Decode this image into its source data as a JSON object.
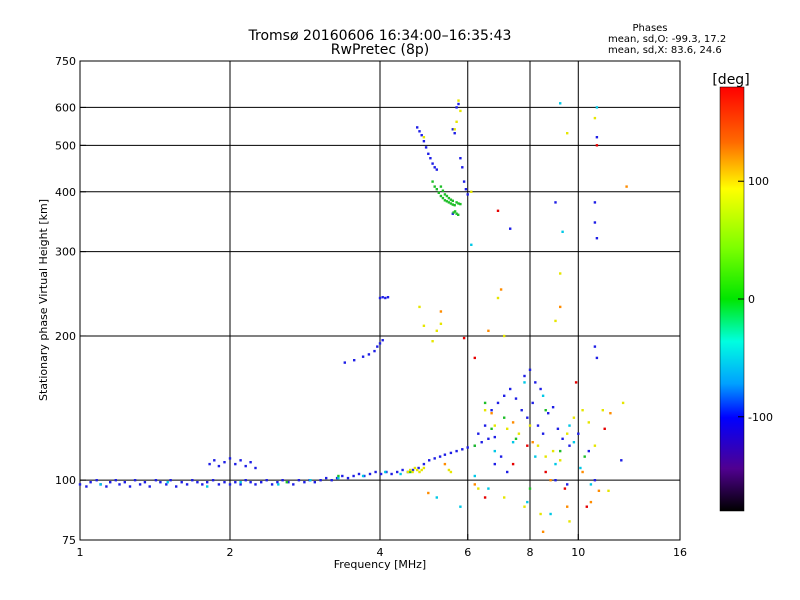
{
  "chart_data": {
    "type": "scatter",
    "title": "Tromsø 20160606 16:34:00–16:35:43",
    "subtitle": "RwPretec (8p)",
    "xlabel": "Frequency [MHz]",
    "ylabel": "Stationary phase Virtual Height [km]",
    "x_scale": "log",
    "y_scale": "log",
    "xlim": [
      1,
      16
    ],
    "ylim": [
      75,
      750
    ],
    "x_ticks": [
      1,
      2,
      4,
      6,
      8,
      10,
      16
    ],
    "y_ticks": [
      75,
      100,
      200,
      300,
      400,
      500,
      600,
      750
    ],
    "x_gridlines": [
      2,
      4,
      6,
      8,
      10
    ],
    "y_gridlines": [
      100,
      200,
      300,
      400,
      500,
      600
    ],
    "grid": true,
    "legend": {
      "title": "Phases",
      "line1": "mean, sd,O: -99.3, 17.2",
      "line2": "mean, sd,X: 83.6, 24.6",
      "placement": "top-right"
    },
    "colorbar": {
      "label": "[deg]",
      "ticks": [
        100,
        0,
        -100
      ],
      "range": [
        -180,
        180
      ],
      "placement": "right"
    },
    "series": [
      {
        "color": "#1e1ee6",
        "points": [
          [
            1.0,
            98
          ],
          [
            1.03,
            97
          ],
          [
            1.05,
            99
          ],
          [
            1.08,
            100
          ],
          [
            1.1,
            98
          ],
          [
            1.13,
            97
          ],
          [
            1.15,
            99
          ],
          [
            1.18,
            100
          ],
          [
            1.2,
            98
          ],
          [
            1.23,
            99
          ],
          [
            1.26,
            97
          ],
          [
            1.29,
            100
          ],
          [
            1.32,
            98
          ],
          [
            1.35,
            99
          ],
          [
            1.38,
            97
          ],
          [
            1.42,
            100
          ],
          [
            1.45,
            99
          ],
          [
            1.49,
            98
          ],
          [
            1.52,
            100
          ],
          [
            1.56,
            97
          ],
          [
            1.6,
            99
          ],
          [
            1.64,
            98
          ],
          [
            1.68,
            100
          ],
          [
            1.72,
            99
          ],
          [
            1.76,
            98
          ],
          [
            1.8,
            99
          ],
          [
            1.85,
            100
          ],
          [
            1.9,
            98
          ],
          [
            1.95,
            99
          ],
          [
            2.0,
            98
          ],
          [
            2.05,
            99
          ],
          [
            2.1,
            98
          ],
          [
            2.15,
            100
          ],
          [
            2.2,
            99
          ],
          [
            2.25,
            98
          ],
          [
            2.31,
            99
          ],
          [
            2.37,
            100
          ],
          [
            2.43,
            98
          ],
          [
            2.49,
            99
          ],
          [
            2.55,
            100
          ],
          [
            2.62,
            99
          ],
          [
            2.68,
            98
          ],
          [
            2.75,
            100
          ],
          [
            2.82,
            99
          ],
          [
            2.89,
            100
          ],
          [
            2.96,
            99
          ],
          [
            3.04,
            100
          ],
          [
            3.12,
            101
          ],
          [
            3.2,
            100
          ],
          [
            3.28,
            101
          ],
          [
            3.36,
            102
          ],
          [
            3.45,
            101
          ],
          [
            3.54,
            102
          ],
          [
            3.63,
            103
          ],
          [
            3.72,
            102
          ],
          [
            3.82,
            103
          ],
          [
            3.92,
            104
          ],
          [
            4.02,
            103
          ],
          [
            4.12,
            104
          ],
          [
            4.22,
            103
          ],
          [
            4.33,
            104
          ],
          [
            4.44,
            105
          ],
          [
            4.55,
            104
          ],
          [
            4.66,
            105
          ],
          [
            4.78,
            106
          ],
          [
            4.9,
            108
          ],
          [
            5.02,
            110
          ],
          [
            5.15,
            111
          ],
          [
            5.28,
            112
          ],
          [
            5.4,
            113
          ],
          [
            5.55,
            114
          ],
          [
            5.7,
            115
          ],
          [
            5.85,
            116
          ],
          [
            6.0,
            117
          ],
          [
            6.2,
            118
          ],
          [
            6.4,
            120
          ],
          [
            6.6,
            122
          ],
          [
            6.8,
            123
          ],
          [
            1.82,
            108
          ],
          [
            1.86,
            110
          ],
          [
            1.9,
            107
          ],
          [
            1.95,
            109
          ],
          [
            2.0,
            111
          ],
          [
            2.05,
            108
          ],
          [
            2.1,
            110
          ],
          [
            2.15,
            107
          ],
          [
            2.2,
            109
          ],
          [
            2.25,
            106
          ],
          [
            3.4,
            176
          ],
          [
            3.55,
            178
          ],
          [
            3.7,
            181
          ],
          [
            3.8,
            183
          ],
          [
            3.9,
            186
          ],
          [
            3.95,
            190
          ],
          [
            4.0,
            193
          ],
          [
            4.05,
            196
          ],
          [
            4.0,
            240
          ],
          [
            4.05,
            241
          ],
          [
            4.1,
            240
          ],
          [
            4.15,
            241
          ],
          [
            4.75,
            545
          ],
          [
            4.8,
            535
          ],
          [
            4.85,
            525
          ],
          [
            4.9,
            510
          ],
          [
            4.95,
            495
          ],
          [
            5.0,
            480
          ],
          [
            5.05,
            470
          ],
          [
            5.1,
            458
          ],
          [
            5.15,
            450
          ],
          [
            5.2,
            445
          ],
          [
            5.6,
            540
          ],
          [
            5.65,
            530
          ],
          [
            5.7,
            600
          ],
          [
            5.75,
            610
          ],
          [
            5.8,
            470
          ],
          [
            5.85,
            450
          ],
          [
            5.9,
            420
          ],
          [
            5.95,
            405
          ],
          [
            6.0,
            395
          ],
          [
            6.3,
            125
          ],
          [
            6.5,
            130
          ],
          [
            6.7,
            140
          ],
          [
            6.9,
            145
          ],
          [
            7.1,
            150
          ],
          [
            7.3,
            155
          ],
          [
            7.5,
            148
          ],
          [
            7.7,
            140
          ],
          [
            7.9,
            135
          ],
          [
            8.1,
            145
          ],
          [
            8.3,
            130
          ],
          [
            8.5,
            125
          ],
          [
            8.7,
            138
          ],
          [
            8.9,
            142
          ],
          [
            9.1,
            128
          ],
          [
            9.3,
            122
          ],
          [
            9.6,
            118
          ],
          [
            10.0,
            125
          ],
          [
            10.5,
            115
          ],
          [
            7.8,
            165
          ],
          [
            8.0,
            170
          ],
          [
            8.2,
            160
          ],
          [
            8.4,
            155
          ],
          [
            6.8,
            108
          ],
          [
            7.0,
            112
          ],
          [
            7.2,
            104
          ],
          [
            9.0,
            100
          ],
          [
            9.5,
            98
          ],
          [
            10.8,
            100
          ],
          [
            10.8,
            345
          ],
          [
            10.9,
            320
          ],
          [
            10.8,
            380
          ],
          [
            10.9,
            520
          ],
          [
            10.8,
            190
          ],
          [
            10.9,
            180
          ],
          [
            12.2,
            110
          ],
          [
            9.0,
            380
          ],
          [
            7.3,
            335
          ],
          [
            5.6,
            360
          ]
        ]
      },
      {
        "color": "#00c8e6",
        "points": [
          [
            1.1,
            98
          ],
          [
            1.5,
            99
          ],
          [
            1.8,
            97
          ],
          [
            2.1,
            99
          ],
          [
            2.5,
            98
          ],
          [
            2.9,
            100
          ],
          [
            3.3,
            101
          ],
          [
            3.7,
            102
          ],
          [
            4.1,
            104
          ],
          [
            4.4,
            103
          ],
          [
            6.2,
            102
          ],
          [
            6.8,
            115
          ],
          [
            7.4,
            120
          ],
          [
            8.2,
            112
          ],
          [
            9.0,
            108
          ],
          [
            9.6,
            130
          ],
          [
            10.1,
            106
          ],
          [
            10.6,
            98
          ],
          [
            5.2,
            92
          ],
          [
            5.8,
            88
          ],
          [
            6.6,
            96
          ],
          [
            7.9,
            90
          ],
          [
            8.8,
            85
          ],
          [
            9.3,
            330
          ],
          [
            9.2,
            612
          ],
          [
            10.9,
            600
          ],
          [
            6.1,
            310
          ],
          [
            7.8,
            160
          ],
          [
            8.5,
            150
          ],
          [
            9.8,
            120
          ]
        ]
      },
      {
        "color": "#1ebe28",
        "points": [
          [
            5.1,
            420
          ],
          [
            5.15,
            410
          ],
          [
            5.2,
            405
          ],
          [
            5.25,
            398
          ],
          [
            5.3,
            392
          ],
          [
            5.35,
            388
          ],
          [
            5.4,
            384
          ],
          [
            5.45,
            382
          ],
          [
            5.5,
            380
          ],
          [
            5.55,
            378
          ],
          [
            5.6,
            376
          ],
          [
            5.65,
            375
          ],
          [
            5.7,
            380
          ],
          [
            5.75,
            378
          ],
          [
            5.8,
            377
          ],
          [
            5.3,
            410
          ],
          [
            5.35,
            402
          ],
          [
            5.4,
            395
          ],
          [
            5.45,
            392
          ],
          [
            5.5,
            388
          ],
          [
            5.55,
            385
          ],
          [
            5.6,
            383
          ],
          [
            5.62,
            362
          ],
          [
            5.66,
            364
          ],
          [
            5.7,
            360
          ],
          [
            5.74,
            358
          ],
          [
            6.2,
            118
          ],
          [
            6.7,
            128
          ],
          [
            7.5,
            122
          ],
          [
            8.6,
            140
          ],
          [
            9.2,
            115
          ],
          [
            10.3,
            112
          ],
          [
            6.5,
            145
          ],
          [
            7.1,
            135
          ],
          [
            8.0,
            96
          ],
          [
            3.3,
            102
          ],
          [
            4.6,
            104
          ],
          [
            2.6,
            99
          ]
        ]
      },
      {
        "color": "#e6e600",
        "points": [
          [
            4.55,
            104
          ],
          [
            4.6,
            105
          ],
          [
            4.65,
            104
          ],
          [
            4.7,
            106
          ],
          [
            4.75,
            105
          ],
          [
            4.8,
            104
          ],
          [
            4.85,
            105
          ],
          [
            4.9,
            106
          ],
          [
            5.5,
            105
          ],
          [
            5.55,
            104
          ],
          [
            5.1,
            195
          ],
          [
            5.2,
            205
          ],
          [
            5.3,
            212
          ],
          [
            4.9,
            210
          ],
          [
            4.8,
            230
          ],
          [
            5.7,
            560
          ],
          [
            5.75,
            620
          ],
          [
            5.8,
            590
          ],
          [
            5.65,
            540
          ],
          [
            6.5,
            140
          ],
          [
            6.8,
            130
          ],
          [
            7.2,
            128
          ],
          [
            7.6,
            125
          ],
          [
            8.0,
            130
          ],
          [
            8.3,
            118
          ],
          [
            8.6,
            112
          ],
          [
            8.9,
            115
          ],
          [
            9.2,
            110
          ],
          [
            9.5,
            125
          ],
          [
            9.8,
            135
          ],
          [
            10.2,
            140
          ],
          [
            10.5,
            132
          ],
          [
            10.8,
            118
          ],
          [
            11.2,
            140
          ],
          [
            6.3,
            96
          ],
          [
            7.1,
            92
          ],
          [
            7.8,
            88
          ],
          [
            8.4,
            85
          ],
          [
            9.6,
            82
          ],
          [
            11.5,
            95
          ],
          [
            6.9,
            240
          ],
          [
            7.1,
            200
          ],
          [
            9.2,
            270
          ],
          [
            9.0,
            215
          ],
          [
            10.8,
            570
          ],
          [
            9.5,
            530
          ],
          [
            12.3,
            145
          ],
          [
            4.9,
            520
          ],
          [
            6.1,
            400
          ]
        ]
      },
      {
        "color": "#ff8c00",
        "points": [
          [
            5.0,
            94
          ],
          [
            5.4,
            108
          ],
          [
            6.2,
            98
          ],
          [
            6.7,
            138
          ],
          [
            7.4,
            132
          ],
          [
            8.1,
            120
          ],
          [
            8.8,
            100
          ],
          [
            9.5,
            88
          ],
          [
            10.2,
            104
          ],
          [
            11.0,
            95
          ],
          [
            12.5,
            410
          ],
          [
            9.2,
            230
          ],
          [
            7.0,
            250
          ],
          [
            5.3,
            225
          ],
          [
            6.6,
            205
          ],
          [
            8.5,
            78
          ],
          [
            10.6,
            90
          ],
          [
            11.6,
            138
          ]
        ]
      },
      {
        "color": "#e60000",
        "points": [
          [
            6.9,
            365
          ],
          [
            5.9,
            198
          ],
          [
            6.5,
            92
          ],
          [
            7.9,
            118
          ],
          [
            8.6,
            104
          ],
          [
            9.4,
            96
          ],
          [
            10.4,
            88
          ],
          [
            10.9,
            500
          ],
          [
            11.3,
            128
          ],
          [
            7.4,
            108
          ],
          [
            9.9,
            160
          ],
          [
            6.2,
            180
          ]
        ]
      }
    ]
  }
}
